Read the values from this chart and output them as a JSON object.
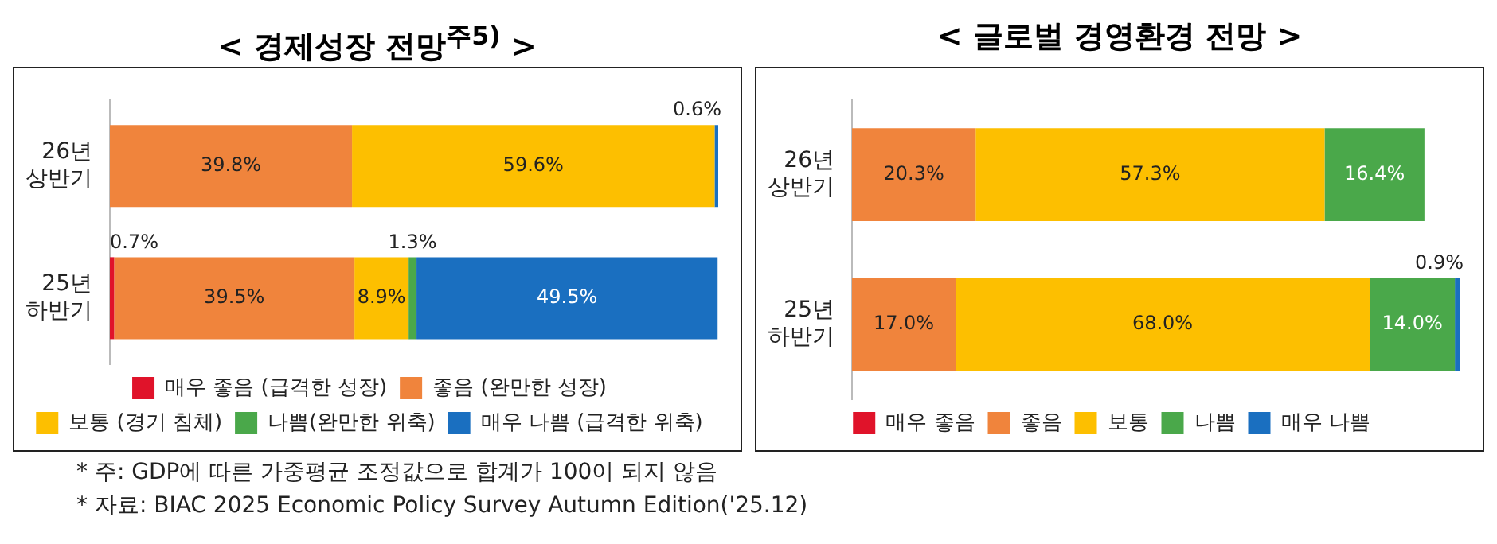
{
  "chart_data": [
    {
      "type": "bar",
      "title": "< 경제성장 전망$^{주5)}$ >",
      "orientation": "horizontal",
      "stacked": true,
      "legend": "bottom",
      "categories": [
        "26년\n상반기",
        "25년\n하반기"
      ],
      "series": [
        {
          "name": "매우 좋음 (급격한 성장)",
          "color": "#e0132a",
          "values": [
            null,
            0.7
          ],
          "value_labels": [
            null,
            "0.7%"
          ]
        },
        {
          "name": "좋음 (완만한 성장)",
          "color": "#f0843c",
          "values": [
            39.8,
            39.5
          ],
          "value_labels": [
            "39.8%",
            "39.5%"
          ]
        },
        {
          "name": "보통 (경기 침체)",
          "color": "#fdbf00",
          "values": [
            59.6,
            8.9
          ],
          "value_labels": [
            "59.6%",
            "8.9%"
          ]
        },
        {
          "name": "나쁨(완만한 위축)",
          "color": "#4aa84a",
          "values": [
            null,
            1.3
          ],
          "value_labels": [
            null,
            "1.3%"
          ]
        },
        {
          "name": "매우 나쁨 (급격한 위축)",
          "color": "#1a6fc0",
          "values": [
            0.6,
            49.5
          ],
          "value_labels": [
            "0.6%",
            "49.5%"
          ]
        }
      ],
      "annotations": [
        "* 주: GDP에 따른 가중평균 조정값으로 합계가 100이 되지 않음",
        "* 자료: BIAC 2025 Economic Policy Survey Autumn Edition('25.12)"
      ]
    },
    {
      "type": "bar",
      "title": "< 글로벌 경영환경 전망 >",
      "orientation": "horizontal",
      "stacked": true,
      "legend": "bottom",
      "categories": [
        "26년\n상반기",
        "25년\n하반기"
      ],
      "series": [
        {
          "name": "매우 좋음",
          "color": "#e0132a",
          "values": [
            null,
            null
          ],
          "value_labels": [
            null,
            null
          ]
        },
        {
          "name": "좋음",
          "color": "#f0843c",
          "values": [
            20.3,
            17.0
          ],
          "value_labels": [
            "20.3%",
            "17.0%"
          ]
        },
        {
          "name": "보통",
          "color": "#fdbf00",
          "values": [
            57.3,
            68.0
          ],
          "value_labels": [
            "57.3%",
            "68.0%"
          ]
        },
        {
          "name": "나쁨",
          "color": "#4aa84a",
          "values": [
            16.4,
            14.0
          ],
          "value_labels": [
            "16.4%",
            "14.0%"
          ]
        },
        {
          "name": "매우 나쁨",
          "color": "#1a6fc0",
          "values": [
            null,
            0.9
          ],
          "value_labels": [
            null,
            "0.9%"
          ]
        }
      ]
    }
  ]
}
